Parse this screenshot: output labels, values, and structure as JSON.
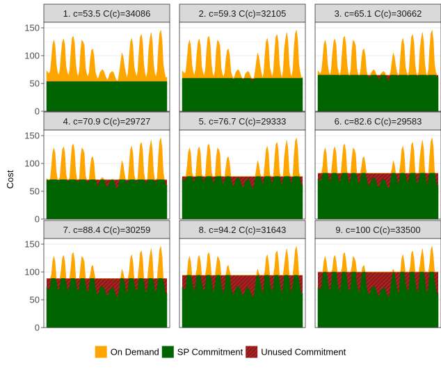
{
  "chart_data": {
    "type": "area",
    "ylabel": "Cost",
    "ylim": [
      0,
      160
    ],
    "yticks": [
      0,
      50,
      100,
      150
    ],
    "grid": true,
    "legend_placement": "bottom",
    "colors": {
      "on_demand": "#FFA500",
      "sp_commitment": "#006400",
      "unused_commitment": "#8B1A1A",
      "unused_hatch": "#C62828",
      "panel_bg": "#ffffff",
      "strip_bg": "#D9D9D9",
      "grid": "#EBEBEB"
    },
    "legend": [
      {
        "key": "on_demand",
        "label": "On Demand"
      },
      {
        "key": "sp_commitment",
        "label": "SP Commitment"
      },
      {
        "key": "unused_commitment",
        "label": "Unused Commitment"
      }
    ],
    "panels": [
      {
        "label": "1. c=53.5 C(c)=34086",
        "commitment": 53.5
      },
      {
        "label": "2. c=59.3 C(c)=32105",
        "commitment": 59.3
      },
      {
        "label": "3. c=65.1 C(c)=30662",
        "commitment": 65.1
      },
      {
        "label": "4. c=70.9 C(c)=29727",
        "commitment": 70.9
      },
      {
        "label": "5. c=76.7 C(c)=29333",
        "commitment": 76.7
      },
      {
        "label": "6. c=82.6 C(c)=29583",
        "commitment": 82.6
      },
      {
        "label": "7. c=88.4 C(c)=30259",
        "commitment": 88.4
      },
      {
        "label": "8. c=94.2 C(c)=31643",
        "commitment": 94.2
      },
      {
        "label": "9. c=100 C(c)=33500",
        "commitment": 100
      }
    ],
    "demand_series": [
      73,
      70,
      68,
      72,
      95,
      120,
      128,
      118,
      84,
      70,
      65,
      75,
      104,
      125,
      130,
      119,
      80,
      70,
      64,
      74,
      108,
      132,
      135,
      122,
      85,
      68,
      63,
      73,
      110,
      128,
      125,
      118,
      78,
      67,
      62,
      70,
      95,
      110,
      112,
      100,
      72,
      64,
      58,
      62,
      70,
      73,
      75,
      72,
      66,
      60,
      56,
      60,
      68,
      70,
      72,
      70,
      64,
      58,
      54,
      58,
      72,
      90,
      105,
      98,
      82,
      70,
      60,
      68,
      100,
      125,
      131,
      118,
      80,
      70,
      62,
      72,
      108,
      134,
      138,
      124,
      84,
      68,
      60,
      72,
      112,
      130,
      142,
      126,
      85,
      68,
      62,
      74,
      115,
      140,
      146,
      128,
      84,
      70,
      60,
      62
    ]
  }
}
